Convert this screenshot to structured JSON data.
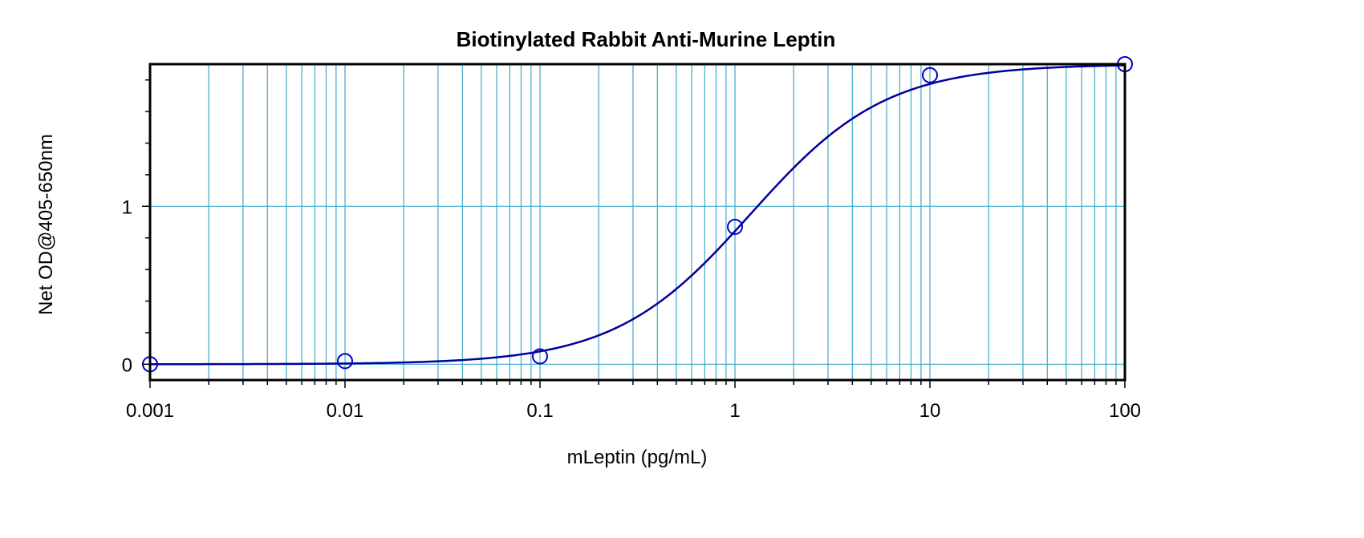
{
  "chart_data": {
    "type": "line",
    "title": "Biotinylated Rabbit Anti-Murine Leptin",
    "xlabel": "mLeptin (pg/mL)",
    "ylabel": "Net OD@405-650nm",
    "x_scale": "log",
    "xlim": [
      0.001,
      100
    ],
    "ylim": [
      -0.1,
      1.9
    ],
    "x_ticks": [
      0.001,
      0.01,
      0.1,
      1,
      10,
      100
    ],
    "x_tick_labels": [
      "0.001",
      "0.01",
      "0.1",
      "1",
      "10",
      "100"
    ],
    "y_ticks": [
      0,
      1
    ],
    "y_tick_labels": [
      "0",
      "1"
    ],
    "grid": true,
    "series": [
      {
        "points": [
          {
            "x": 0.001,
            "y": 0.0
          },
          {
            "x": 0.01,
            "y": 0.02
          },
          {
            "x": 0.1,
            "y": 0.05
          },
          {
            "x": 1,
            "y": 0.87
          },
          {
            "x": 10,
            "y": 1.83
          },
          {
            "x": 100,
            "y": 1.9
          }
        ],
        "curve": {
          "model": "4PL",
          "a": 0.0,
          "d": 1.9,
          "c": 1.2,
          "b": 1.25
        },
        "color": "#0000aa"
      }
    ],
    "colors": {
      "grid": "#3fa9c9",
      "frame": "#000000",
      "line": "#00009b",
      "marker": "#0000cc"
    }
  }
}
